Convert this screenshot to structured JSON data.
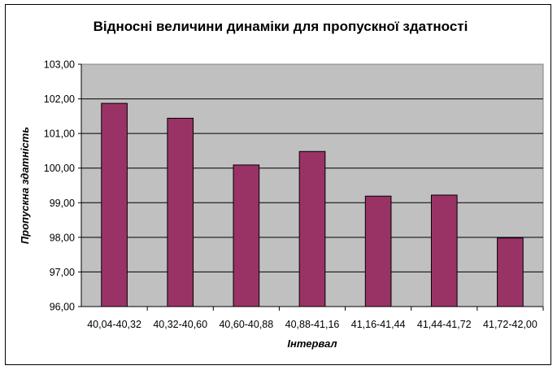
{
  "chart_data": {
    "type": "bar",
    "title": "Відносні величини динаміки для пропускної здатності",
    "xlabel": "Інтервал",
    "ylabel": "Пропускна здатність",
    "categories": [
      "40,04-40,32",
      "40,32-40,60",
      "40,60-40,88",
      "40,88-41,16",
      "41,16-41,44",
      "41,44-41,72",
      "41,72-42,00"
    ],
    "values": [
      101.87,
      101.44,
      100.09,
      100.48,
      99.19,
      99.22,
      97.98
    ],
    "ylim": [
      96,
      103
    ],
    "yticks": [
      "96,00",
      "97,00",
      "98,00",
      "99,00",
      "100,00",
      "101,00",
      "102,00",
      "103,00"
    ],
    "grid": true,
    "colors": {
      "bar": "#993366",
      "plot_bg": "#c0c0c0",
      "grid": "#000000"
    }
  }
}
